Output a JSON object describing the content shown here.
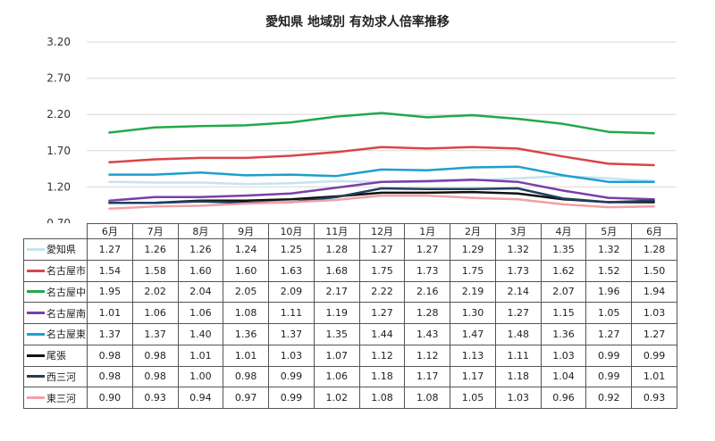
{
  "chart_data": {
    "type": "line",
    "title": "愛知県 地域別 有効求人倍率推移",
    "categories": [
      "6月",
      "7月",
      "8月",
      "9月",
      "10月",
      "11月",
      "12月",
      "1月",
      "2月",
      "3月",
      "4月",
      "5月",
      "6月"
    ],
    "ylim": [
      0.7,
      3.2
    ],
    "yticks": [
      "0.70",
      "1.20",
      "1.70",
      "2.20",
      "2.70",
      "3.20"
    ],
    "grid": true,
    "legend_placement": "data-table",
    "series": [
      {
        "name": "愛知県",
        "color": "#c6e3f0",
        "values": [
          1.27,
          1.26,
          1.26,
          1.24,
          1.25,
          1.28,
          1.27,
          1.27,
          1.29,
          1.32,
          1.35,
          1.32,
          1.28
        ],
        "labels": [
          "1.27",
          "1.26",
          "1.26",
          "1.24",
          "1.25",
          "1.28",
          "1.27",
          "1.27",
          "1.29",
          "1.32",
          "1.35",
          "1.32",
          "1.28"
        ]
      },
      {
        "name": "名古屋市",
        "color": "#d9444a",
        "values": [
          1.54,
          1.58,
          1.6,
          1.6,
          1.63,
          1.68,
          1.75,
          1.73,
          1.75,
          1.73,
          1.62,
          1.52,
          1.5
        ],
        "labels": [
          "1.54",
          "1.58",
          "1.60",
          "1.60",
          "1.63",
          "1.68",
          "1.75",
          "1.73",
          "1.75",
          "1.73",
          "1.62",
          "1.52",
          "1.50"
        ]
      },
      {
        "name": "名古屋中",
        "color": "#22a84a",
        "values": [
          1.95,
          2.02,
          2.04,
          2.05,
          2.09,
          2.17,
          2.22,
          2.16,
          2.19,
          2.14,
          2.07,
          1.96,
          1.94
        ],
        "labels": [
          "1.95",
          "2.02",
          "2.04",
          "2.05",
          "2.09",
          "2.17",
          "2.22",
          "2.16",
          "2.19",
          "2.14",
          "2.07",
          "1.96",
          "1.94"
        ]
      },
      {
        "name": "名古屋南",
        "color": "#7a3fa8",
        "values": [
          1.01,
          1.06,
          1.06,
          1.08,
          1.11,
          1.19,
          1.27,
          1.28,
          1.3,
          1.27,
          1.15,
          1.05,
          1.03
        ],
        "labels": [
          "1.01",
          "1.06",
          "1.06",
          "1.08",
          "1.11",
          "1.19",
          "1.27",
          "1.28",
          "1.30",
          "1.27",
          "1.15",
          "1.05",
          "1.03"
        ]
      },
      {
        "name": "名古屋東",
        "color": "#1c9fd0",
        "values": [
          1.37,
          1.37,
          1.4,
          1.36,
          1.37,
          1.35,
          1.44,
          1.43,
          1.47,
          1.48,
          1.36,
          1.27,
          1.27
        ],
        "labels": [
          "1.37",
          "1.37",
          "1.40",
          "1.36",
          "1.37",
          "1.35",
          "1.44",
          "1.43",
          "1.47",
          "1.48",
          "1.36",
          "1.27",
          "1.27"
        ]
      },
      {
        "name": "尾張",
        "color": "#111111",
        "values": [
          0.98,
          0.98,
          1.01,
          1.01,
          1.03,
          1.07,
          1.12,
          1.12,
          1.13,
          1.11,
          1.03,
          0.99,
          0.99
        ],
        "labels": [
          "0.98",
          "0.98",
          "1.01",
          "1.01",
          "1.03",
          "1.07",
          "1.12",
          "1.12",
          "1.13",
          "1.11",
          "1.03",
          "0.99",
          "0.99"
        ]
      },
      {
        "name": "西三河",
        "color": "#1f3f5c",
        "values": [
          0.98,
          0.98,
          1.0,
          0.98,
          0.99,
          1.06,
          1.18,
          1.17,
          1.17,
          1.18,
          1.04,
          0.99,
          1.01
        ],
        "labels": [
          "0.98",
          "0.98",
          "1.00",
          "0.98",
          "0.99",
          "1.06",
          "1.18",
          "1.17",
          "1.17",
          "1.18",
          "1.04",
          "0.99",
          "1.01"
        ]
      },
      {
        "name": "東三河",
        "color": "#f0a0a8",
        "values": [
          0.9,
          0.93,
          0.94,
          0.97,
          0.99,
          1.02,
          1.08,
          1.08,
          1.05,
          1.03,
          0.96,
          0.92,
          0.93
        ],
        "labels": [
          "0.90",
          "0.93",
          "0.94",
          "0.97",
          "0.99",
          "1.02",
          "1.08",
          "1.08",
          "1.05",
          "1.03",
          "0.96",
          "0.92",
          "0.93"
        ]
      }
    ]
  }
}
